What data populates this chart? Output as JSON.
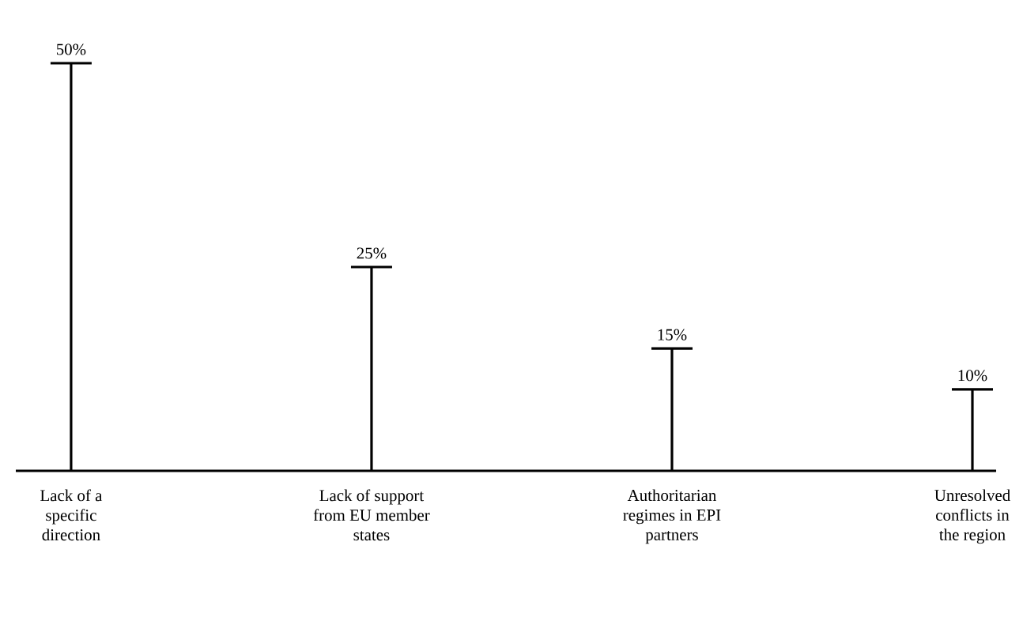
{
  "chart_data": {
    "type": "bar",
    "categories": [
      "Lack of a specific direction",
      "Lack of support from EU member states",
      "Authoritarian regimes in EPI partners",
      "Unresolved conflicts in the region"
    ],
    "values": [
      50,
      25,
      15,
      10
    ],
    "value_labels": [
      "50%",
      "25%",
      "15%",
      "10%"
    ],
    "color": "#000000",
    "tick_labels": "x",
    "grid": false,
    "marker": "none"
  }
}
